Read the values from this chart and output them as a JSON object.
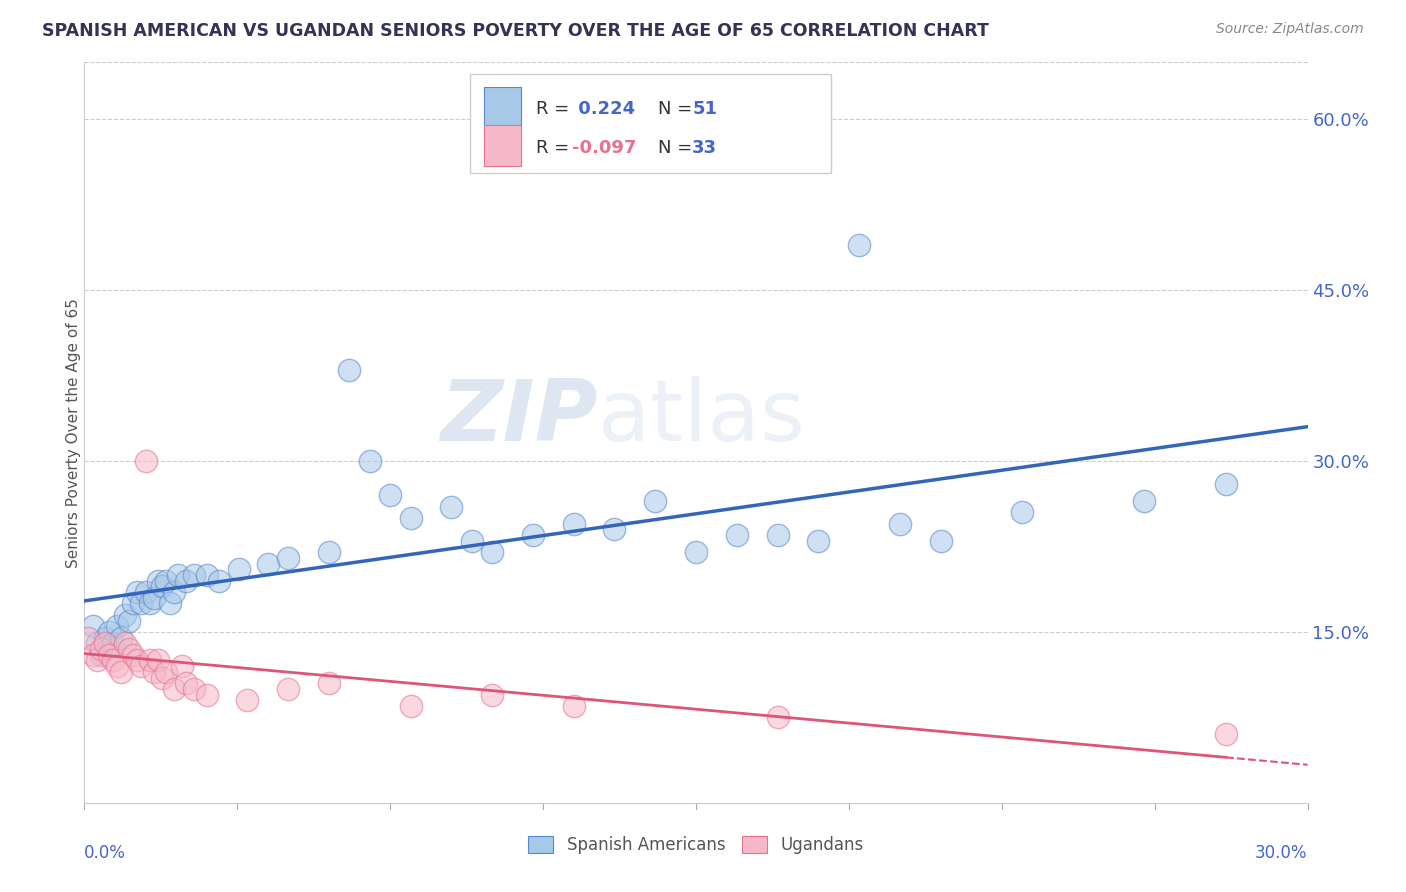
{
  "title": "SPANISH AMERICAN VS UGANDAN SENIORS POVERTY OVER THE AGE OF 65 CORRELATION CHART",
  "source": "Source: ZipAtlas.com",
  "ylabel": "Seniors Poverty Over the Age of 65",
  "yticks": [
    0.0,
    0.15,
    0.3,
    0.45,
    0.6
  ],
  "ytick_labels": [
    "",
    "15.0%",
    "30.0%",
    "45.0%",
    "60.0%"
  ],
  "xlim": [
    0.0,
    0.3
  ],
  "ylim": [
    0.0,
    0.65
  ],
  "watermark_zip": "ZIP",
  "watermark_atlas": "atlas",
  "legend_r1": "R =  0.224",
  "legend_n1": "N = 51",
  "legend_r2": "R = -0.097",
  "legend_n2": "N = 33",
  "blue_fill": "#a8c8e8",
  "pink_fill": "#f5b8c8",
  "blue_edge": "#5588cc",
  "pink_edge": "#e87090",
  "line_blue": "#3366bb",
  "line_pink": "#dd5577",
  "title_color": "#333355",
  "tick_color": "#4466cc",
  "source_color": "#888888",
  "background": "#ffffff",
  "grid_color": "#cccccc",
  "legend_text_dark": "#333333",
  "legend_text_blue": "#4466cc",
  "spanish_x": [
    0.002,
    0.003,
    0.004,
    0.005,
    0.006,
    0.007,
    0.008,
    0.009,
    0.01,
    0.011,
    0.012,
    0.013,
    0.014,
    0.015,
    0.016,
    0.017,
    0.018,
    0.019,
    0.02,
    0.021,
    0.022,
    0.023,
    0.025,
    0.027,
    0.03,
    0.033,
    0.038,
    0.045,
    0.05,
    0.06,
    0.065,
    0.07,
    0.075,
    0.08,
    0.09,
    0.095,
    0.1,
    0.11,
    0.12,
    0.13,
    0.14,
    0.15,
    0.16,
    0.17,
    0.18,
    0.19,
    0.2,
    0.21,
    0.23,
    0.26,
    0.28
  ],
  "spanish_y": [
    0.155,
    0.14,
    0.13,
    0.145,
    0.15,
    0.14,
    0.155,
    0.145,
    0.165,
    0.16,
    0.175,
    0.185,
    0.175,
    0.185,
    0.175,
    0.18,
    0.195,
    0.19,
    0.195,
    0.175,
    0.185,
    0.2,
    0.195,
    0.2,
    0.2,
    0.195,
    0.205,
    0.21,
    0.215,
    0.22,
    0.38,
    0.3,
    0.27,
    0.25,
    0.26,
    0.23,
    0.22,
    0.235,
    0.245,
    0.24,
    0.265,
    0.22,
    0.235,
    0.235,
    0.23,
    0.49,
    0.245,
    0.23,
    0.255,
    0.265,
    0.28
  ],
  "ugandan_x": [
    0.001,
    0.002,
    0.003,
    0.004,
    0.005,
    0.006,
    0.007,
    0.008,
    0.009,
    0.01,
    0.011,
    0.012,
    0.013,
    0.014,
    0.015,
    0.016,
    0.017,
    0.018,
    0.019,
    0.02,
    0.022,
    0.024,
    0.025,
    0.027,
    0.03,
    0.04,
    0.05,
    0.06,
    0.08,
    0.1,
    0.12,
    0.17,
    0.28
  ],
  "ugandan_y": [
    0.145,
    0.13,
    0.125,
    0.135,
    0.14,
    0.13,
    0.125,
    0.12,
    0.115,
    0.14,
    0.135,
    0.13,
    0.125,
    0.12,
    0.3,
    0.125,
    0.115,
    0.125,
    0.11,
    0.115,
    0.1,
    0.12,
    0.105,
    0.1,
    0.095,
    0.09,
    0.1,
    0.105,
    0.085,
    0.095,
    0.085,
    0.075,
    0.06
  ]
}
